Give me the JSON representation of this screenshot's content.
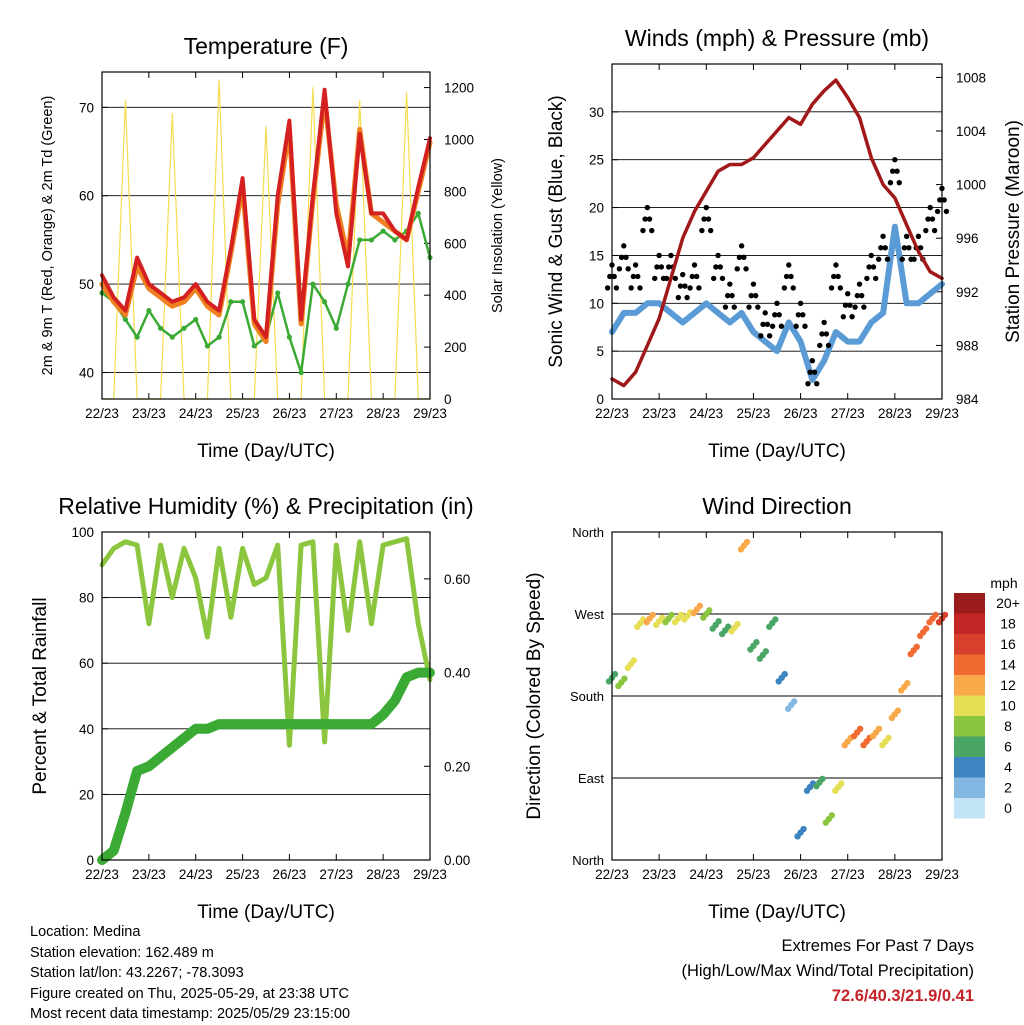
{
  "colors": {
    "temp_2m": "#d42020",
    "temp_9m": "#f07f20",
    "dewpoint": "#3aaa35",
    "solar": "#f5dc50",
    "wind": "#5b9bd5",
    "gust": "#000000",
    "pressure": "#a01818",
    "rh": "#8cc63f",
    "precip": "#3aaa35",
    "extremes": "#c4232a"
  },
  "x_ticks": [
    "22/23",
    "23/23",
    "24/23",
    "25/23",
    "26/23",
    "27/23",
    "28/23",
    "29/23"
  ],
  "chart_data": [
    {
      "id": "temperature",
      "type": "line",
      "title": "Temperature (F)",
      "xlabel": "Time (Day/UTC)",
      "ylabel": "2m & 9m T (Red, Orange) & 2m Td (Green)",
      "y2label": "Solar Insolation (Yellow)",
      "ylim": [
        37,
        74
      ],
      "yticks": [
        40,
        50,
        60,
        70
      ],
      "y2lim": [
        0,
        1260
      ],
      "y2ticks": [
        0,
        200,
        400,
        600,
        800,
        1000,
        1200
      ],
      "grid": true,
      "x": [
        0,
        0.25,
        0.5,
        0.75,
        1,
        1.25,
        1.5,
        1.75,
        2,
        2.25,
        2.5,
        2.75,
        3,
        3.25,
        3.5,
        3.75,
        4,
        4.25,
        4.5,
        4.75,
        5,
        5.25,
        5.5,
        5.75,
        6,
        6.25,
        6.5,
        6.75,
        7
      ],
      "series": [
        {
          "values": [
            51,
            48.5,
            47,
            53,
            50,
            49,
            48,
            48.5,
            50,
            48,
            47,
            54,
            62,
            46,
            44,
            60,
            68.5,
            46,
            60,
            72,
            58,
            52,
            67,
            58,
            58,
            56,
            55,
            61,
            66.5
          ]
        },
        {
          "values": [
            50,
            48,
            46.5,
            52,
            49.5,
            48.5,
            47.5,
            48,
            49.5,
            47.5,
            46.5,
            53.5,
            61,
            45.5,
            43.5,
            59,
            67.5,
            45.5,
            59.5,
            71,
            59,
            53,
            67.5,
            58,
            57,
            56,
            55,
            60.5,
            66
          ]
        },
        {
          "values": [
            49,
            48,
            46,
            44,
            47,
            45,
            44,
            45,
            46,
            43,
            44,
            48,
            48,
            43,
            44,
            49,
            44,
            40,
            50,
            48,
            45,
            50,
            55,
            55,
            56,
            55,
            56,
            58,
            53
          ]
        },
        {
          "values": [
            0,
            0,
            1150,
            0,
            0,
            0,
            1100,
            0,
            0,
            0,
            1230,
            0,
            0,
            0,
            1050,
            0,
            0,
            0,
            1200,
            0,
            0,
            0,
            1150,
            0,
            0,
            0,
            1180,
            0,
            0
          ]
        }
      ]
    },
    {
      "id": "winds",
      "type": "line",
      "title": "Winds (mph) & Pressure (mb)",
      "xlabel": "Time (Day/UTC)",
      "ylabel": "Sonic Wind & Gust (Blue, Black)",
      "y2label": "Station Pressure (Maroon)",
      "ylim": [
        0,
        35
      ],
      "yticks": [
        0,
        5,
        10,
        15,
        20,
        25,
        30
      ],
      "y2lim": [
        984,
        1009
      ],
      "y2ticks": [
        984,
        988,
        992,
        996,
        1000,
        1004,
        1008
      ],
      "grid": true,
      "x": [
        0,
        0.25,
        0.5,
        0.75,
        1,
        1.25,
        1.5,
        1.75,
        2,
        2.25,
        2.5,
        2.75,
        3,
        3.25,
        3.5,
        3.75,
        4,
        4.25,
        4.5,
        4.75,
        5,
        5.25,
        5.5,
        5.75,
        6,
        6.25,
        6.5,
        6.75,
        7
      ],
      "series": [
        {
          "values": [
            7,
            9,
            9,
            10,
            10,
            9,
            8,
            9,
            10,
            9,
            8,
            9,
            7,
            6,
            5,
            8,
            6,
            2,
            4,
            7,
            6,
            6,
            8,
            9,
            18,
            10,
            10,
            11,
            12
          ]
        },
        {
          "values": [
            14,
            16,
            14,
            20,
            15,
            15,
            13,
            14,
            20,
            15,
            12,
            16,
            12,
            9,
            10,
            14,
            10,
            4,
            8,
            14,
            11,
            12,
            15,
            17,
            25,
            17,
            17,
            20,
            22
          ]
        },
        {
          "values": [
            985.5,
            985,
            986,
            988,
            990,
            993,
            996,
            998,
            999.5,
            1001,
            1001.5,
            1001.5,
            1002,
            1003,
            1004,
            1005,
            1004.5,
            1006,
            1007,
            1007.8,
            1006.5,
            1005,
            1002,
            1000,
            999,
            997,
            995,
            993.5,
            993
          ]
        }
      ]
    },
    {
      "id": "humidity",
      "type": "line",
      "title": "Relative Humidity (%) & Precipitation (in)",
      "xlabel": "Time (Day/UTC)",
      "ylabel": "Percent & Total Rainfall",
      "ylim": [
        0,
        100
      ],
      "yticks": [
        0,
        20,
        40,
        60,
        80,
        100
      ],
      "y2lim": [
        0,
        0.7
      ],
      "y2ticks": [
        0.0,
        0.2,
        0.4,
        0.6
      ],
      "grid": true,
      "x": [
        0,
        0.25,
        0.5,
        0.75,
        1,
        1.25,
        1.5,
        1.75,
        2,
        2.25,
        2.5,
        2.75,
        3,
        3.25,
        3.5,
        3.75,
        4,
        4.25,
        4.5,
        4.75,
        5,
        5.25,
        5.5,
        5.75,
        6,
        6.25,
        6.5,
        6.75,
        7
      ],
      "series": [
        {
          "values": [
            90,
            95,
            97,
            96,
            72,
            96,
            80,
            95,
            86,
            68,
            95,
            74,
            95,
            84,
            86,
            96,
            35,
            96,
            97,
            36,
            96,
            70,
            97,
            72,
            96,
            97,
            98,
            72,
            55
          ]
        },
        {
          "values": [
            0,
            0.02,
            0.1,
            0.19,
            0.2,
            0.22,
            0.24,
            0.26,
            0.28,
            0.28,
            0.29,
            0.29,
            0.29,
            0.29,
            0.29,
            0.29,
            0.29,
            0.29,
            0.29,
            0.29,
            0.29,
            0.29,
            0.29,
            0.29,
            0.31,
            0.34,
            0.39,
            0.4,
            0.4
          ]
        }
      ]
    },
    {
      "id": "direction",
      "type": "scatter",
      "title": "Wind Direction",
      "xlabel": "Time (Day/UTC)",
      "ylabel": "Direction (Colored By Speed)",
      "ylim": [
        0,
        360
      ],
      "yticks": [
        "North",
        "East",
        "South",
        "West",
        "North"
      ],
      "grid": true,
      "legend": {
        "title": "mph",
        "labels": [
          "20+",
          "18",
          "16",
          "14",
          "12",
          "10",
          "8",
          "6",
          "4",
          "2",
          "0"
        ],
        "colors": [
          "#9b1c1c",
          "#c42626",
          "#d9402b",
          "#f06a32",
          "#f9a84a",
          "#e6de55",
          "#8cc63f",
          "#4aa667",
          "#3d84c0",
          "#82b8e2",
          "#c2e3f6"
        ]
      },
      "x": [
        0,
        0.2,
        0.4,
        0.6,
        0.8,
        1,
        1.2,
        1.4,
        1.6,
        1.8,
        2,
        2.2,
        2.4,
        2.6,
        2.8,
        3,
        3.2,
        3.4,
        3.6,
        3.8,
        4,
        4.2,
        4.4,
        4.6,
        4.8,
        5,
        5.2,
        5.4,
        5.6,
        5.8,
        6,
        6.2,
        6.4,
        6.6,
        6.8,
        7
      ],
      "speed": [
        6,
        8,
        9,
        10,
        12,
        9,
        8,
        9,
        10,
        11,
        8,
        5,
        6,
        10,
        11,
        5,
        5,
        6,
        3,
        2,
        3,
        4,
        6,
        8,
        9,
        11,
        13,
        14,
        12,
        10,
        11,
        12,
        13,
        14,
        14,
        15
      ],
      "values": [
        200,
        195,
        215,
        260,
        265,
        262,
        265,
        265,
        268,
        275,
        270,
        258,
        252,
        255,
        345,
        235,
        225,
        260,
        200,
        170,
        30,
        80,
        85,
        45,
        80,
        130,
        140,
        130,
        140,
        130,
        160,
        190,
        230,
        250,
        265,
        265
      ]
    }
  ],
  "footer": {
    "location": "Location: Medina",
    "elevation": "Station elevation: 162.489 m",
    "latlon": "Station lat/lon: 43.2267; -78.3093",
    "created": "Figure created on Thu, 2025-05-29, at 23:38 UTC",
    "recent": "Most recent data timestamp: 2025/05/29 23:15:00",
    "extremes_title": "Extremes For Past 7 Days",
    "extremes_subtitle": "(High/Low/Max Wind/Total Precipitation)",
    "extremes_values": "72.6/40.3/21.9/0.41"
  }
}
